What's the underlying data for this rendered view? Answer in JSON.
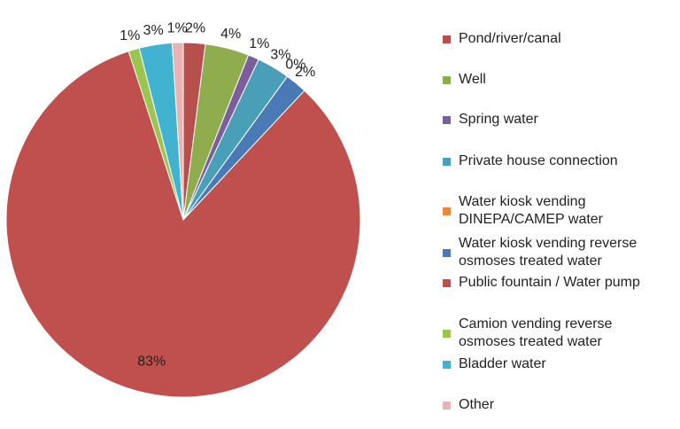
{
  "chart_data": {
    "type": "pie",
    "categories": [
      "Pond/river/canal",
      "Well",
      "Spring water",
      "Private house connection",
      "Water kiosk vending\nDINEPA/CAMEP water",
      "Water kiosk vending reverse\nosmoses treated water",
      "Public fountain / Water pump",
      "Camion vending reverse\nosmoses treated water",
      "Bladder water",
      "Other"
    ],
    "values": [
      2,
      4,
      1,
      3,
      0,
      2,
      83,
      1,
      3,
      1
    ],
    "value_labels": [
      "2%",
      "4%",
      "1%",
      "3%",
      "0%",
      "2%",
      "83%",
      "1%",
      "3%",
      "1%"
    ],
    "colors": [
      "#b5504c",
      "#8fac4f",
      "#7a5f9c",
      "#4a9fb8",
      "#e8883c",
      "#4a7ab5",
      "#c0504d",
      "#9cc54f",
      "#41b2d0",
      "#e8b4b3"
    ],
    "legend": "right"
  }
}
